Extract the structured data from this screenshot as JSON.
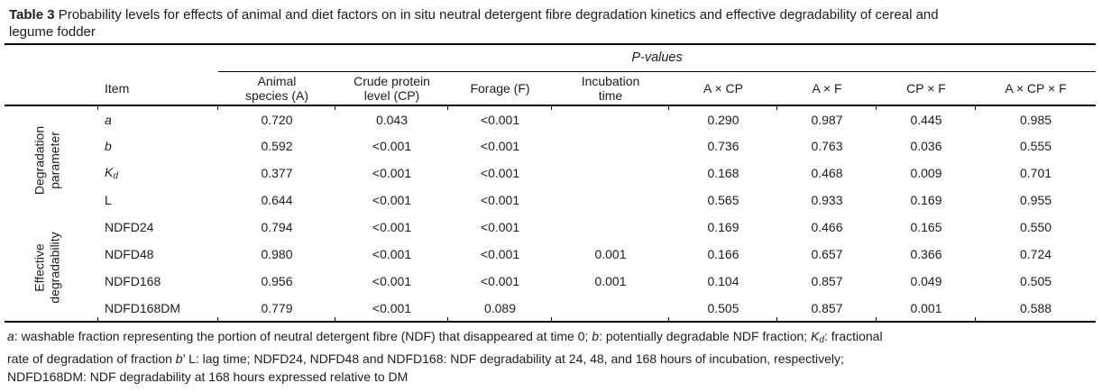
{
  "caption": {
    "table_label": "Table 3",
    "line1": " Probability levels for effects of animal and diet factors on in situ neutral detergent fibre degradation kinetics and effective degradability of cereal and",
    "line2": "legume fodder"
  },
  "table": {
    "p_values_label": "P-values",
    "headers": {
      "item": [
        "Item"
      ],
      "cols": [
        [
          "Animal",
          "species (A)"
        ],
        [
          "Crude protein",
          "level (CP)"
        ],
        [
          "Forage (F)"
        ],
        [
          "Incubation",
          "time"
        ],
        [
          "A × CP"
        ],
        [
          "A × F"
        ],
        [
          "CP × F"
        ],
        [
          "A × CP × F"
        ]
      ]
    },
    "groups": [
      {
        "name": "degradation-parameter",
        "label_lines": [
          "Degradation",
          "parameter"
        ],
        "rows": [
          {
            "item": [
              {
                "t": "a",
                "i": true
              }
            ],
            "values": [
              "0.720",
              "0.043",
              "<0.001",
              "",
              "0.290",
              "0.987",
              "0.445",
              "0.985"
            ]
          },
          {
            "item": [
              {
                "t": "b",
                "i": true
              }
            ],
            "values": [
              "0.592",
              "<0.001",
              "<0.001",
              "",
              "0.736",
              "0.763",
              "0.036",
              "0.555"
            ]
          },
          {
            "item": [
              {
                "t": "K",
                "i": true
              },
              {
                "t": "d",
                "i": true,
                "sub": true
              }
            ],
            "values": [
              "0.377",
              "<0.001",
              "<0.001",
              "",
              "0.168",
              "0.468",
              "0.009",
              "0.701"
            ]
          },
          {
            "item": [
              {
                "t": "L"
              }
            ],
            "values": [
              "0.644",
              "<0.001",
              "<0.001",
              "",
              "0.565",
              "0.933",
              "0.169",
              "0.955"
            ]
          }
        ]
      },
      {
        "name": "effective-degradability",
        "label_lines": [
          "Effective",
          "degradability"
        ],
        "rows": [
          {
            "item": [
              {
                "t": "NDFD24"
              }
            ],
            "values": [
              "0.794",
              "<0.001",
              "<0.001",
              "",
              "0.169",
              "0.466",
              "0.165",
              "0.550"
            ]
          },
          {
            "item": [
              {
                "t": "NDFD48"
              }
            ],
            "values": [
              "0.980",
              "<0.001",
              "<0.001",
              "0.001",
              "0.166",
              "0.657",
              "0.366",
              "0.724"
            ]
          },
          {
            "item": [
              {
                "t": "NDFD168"
              }
            ],
            "values": [
              "0.956",
              "<0.001",
              "<0.001",
              "0.001",
              "0.104",
              "0.857",
              "0.049",
              "0.505"
            ]
          },
          {
            "item": [
              {
                "t": "NDFD168DM"
              }
            ],
            "values": [
              "0.779",
              "<0.001",
              "0.089",
              "",
              "0.505",
              "0.857",
              "0.001",
              "0.588"
            ]
          }
        ]
      }
    ]
  },
  "footnote": {
    "lines": [
      [
        {
          "t": "a",
          "i": true
        },
        {
          "t": ": washable fraction representing the portion of neutral detergent fibre (NDF) that disappeared at time 0; "
        },
        {
          "t": "b",
          "i": true
        },
        {
          "t": ": potentially degradable NDF fraction; "
        },
        {
          "t": "K",
          "i": true
        },
        {
          "t": "d",
          "i": true,
          "sub": true
        },
        {
          "t": ": fractional"
        }
      ],
      [
        {
          "t": "rate of degradation of fraction "
        },
        {
          "t": "b",
          "i": true
        },
        {
          "t": "’ L: lag time; NDFD24, NDFD48 and NDFD168: NDF degradability at 24, 48, and 168 hours of incubation, respectively;"
        }
      ],
      [
        {
          "t": "NDFD168DM: NDF degradability at 168 hours expressed relative to DM"
        }
      ]
    ]
  }
}
